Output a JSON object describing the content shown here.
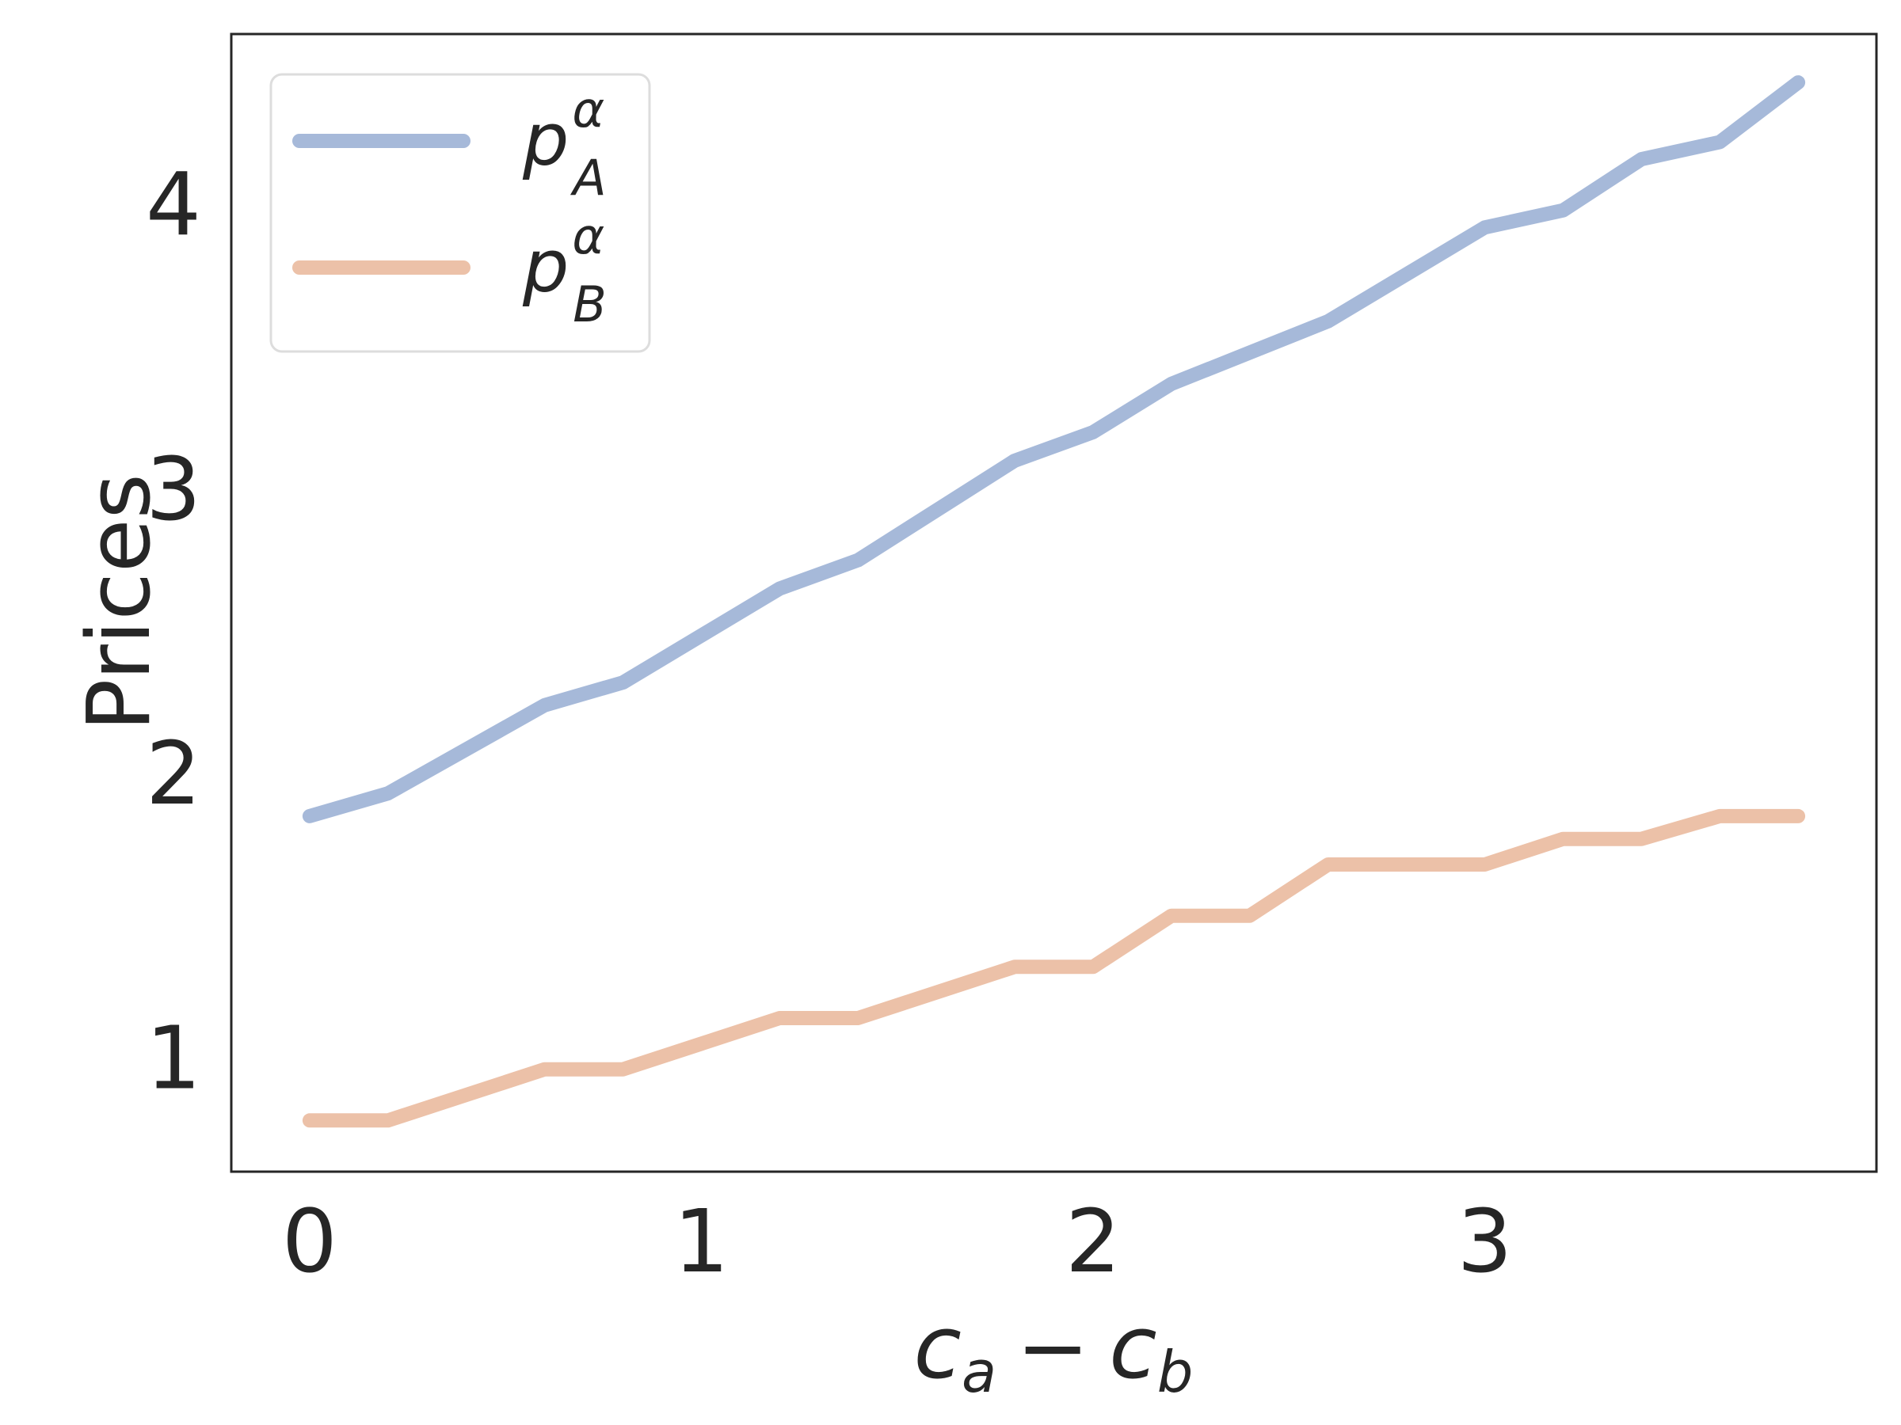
{
  "chart_data": {
    "type": "line",
    "xlabel": {
      "c1": "c",
      "s1": "a",
      "op": "−",
      "c2": "c",
      "s2": "b"
    },
    "ylabel": "Prices",
    "xlim": [
      -0.2,
      4.0
    ],
    "ylim": [
      0.6,
      4.6
    ],
    "x_ticks": [
      0,
      1,
      2,
      3
    ],
    "y_ticks": [
      1,
      2,
      3,
      4
    ],
    "x": [
      0,
      0.2,
      0.6,
      0.8,
      1.2,
      1.4,
      1.8,
      2.0,
      2.2,
      2.4,
      2.6,
      3.0,
      3.2,
      3.4,
      3.6,
      3.8
    ],
    "grid": false,
    "legend_position": "top-left",
    "series": [
      {
        "id": "pA",
        "name": {
          "base": "p",
          "sup": "α",
          "sub": "A"
        },
        "color": "#a6b9d9",
        "values": [
          1.85,
          1.93,
          2.24,
          2.32,
          2.65,
          2.75,
          3.1,
          3.2,
          3.37,
          3.48,
          3.59,
          3.92,
          3.98,
          4.16,
          4.22,
          4.43
        ]
      },
      {
        "id": "pB",
        "name": {
          "base": "p",
          "sup": "α",
          "sub": "B"
        },
        "color": "#ecc1a8",
        "values": [
          0.78,
          0.78,
          0.96,
          0.96,
          1.14,
          1.14,
          1.32,
          1.32,
          1.5,
          1.5,
          1.68,
          1.68,
          1.77,
          1.77,
          1.85,
          1.85
        ]
      }
    ]
  }
}
